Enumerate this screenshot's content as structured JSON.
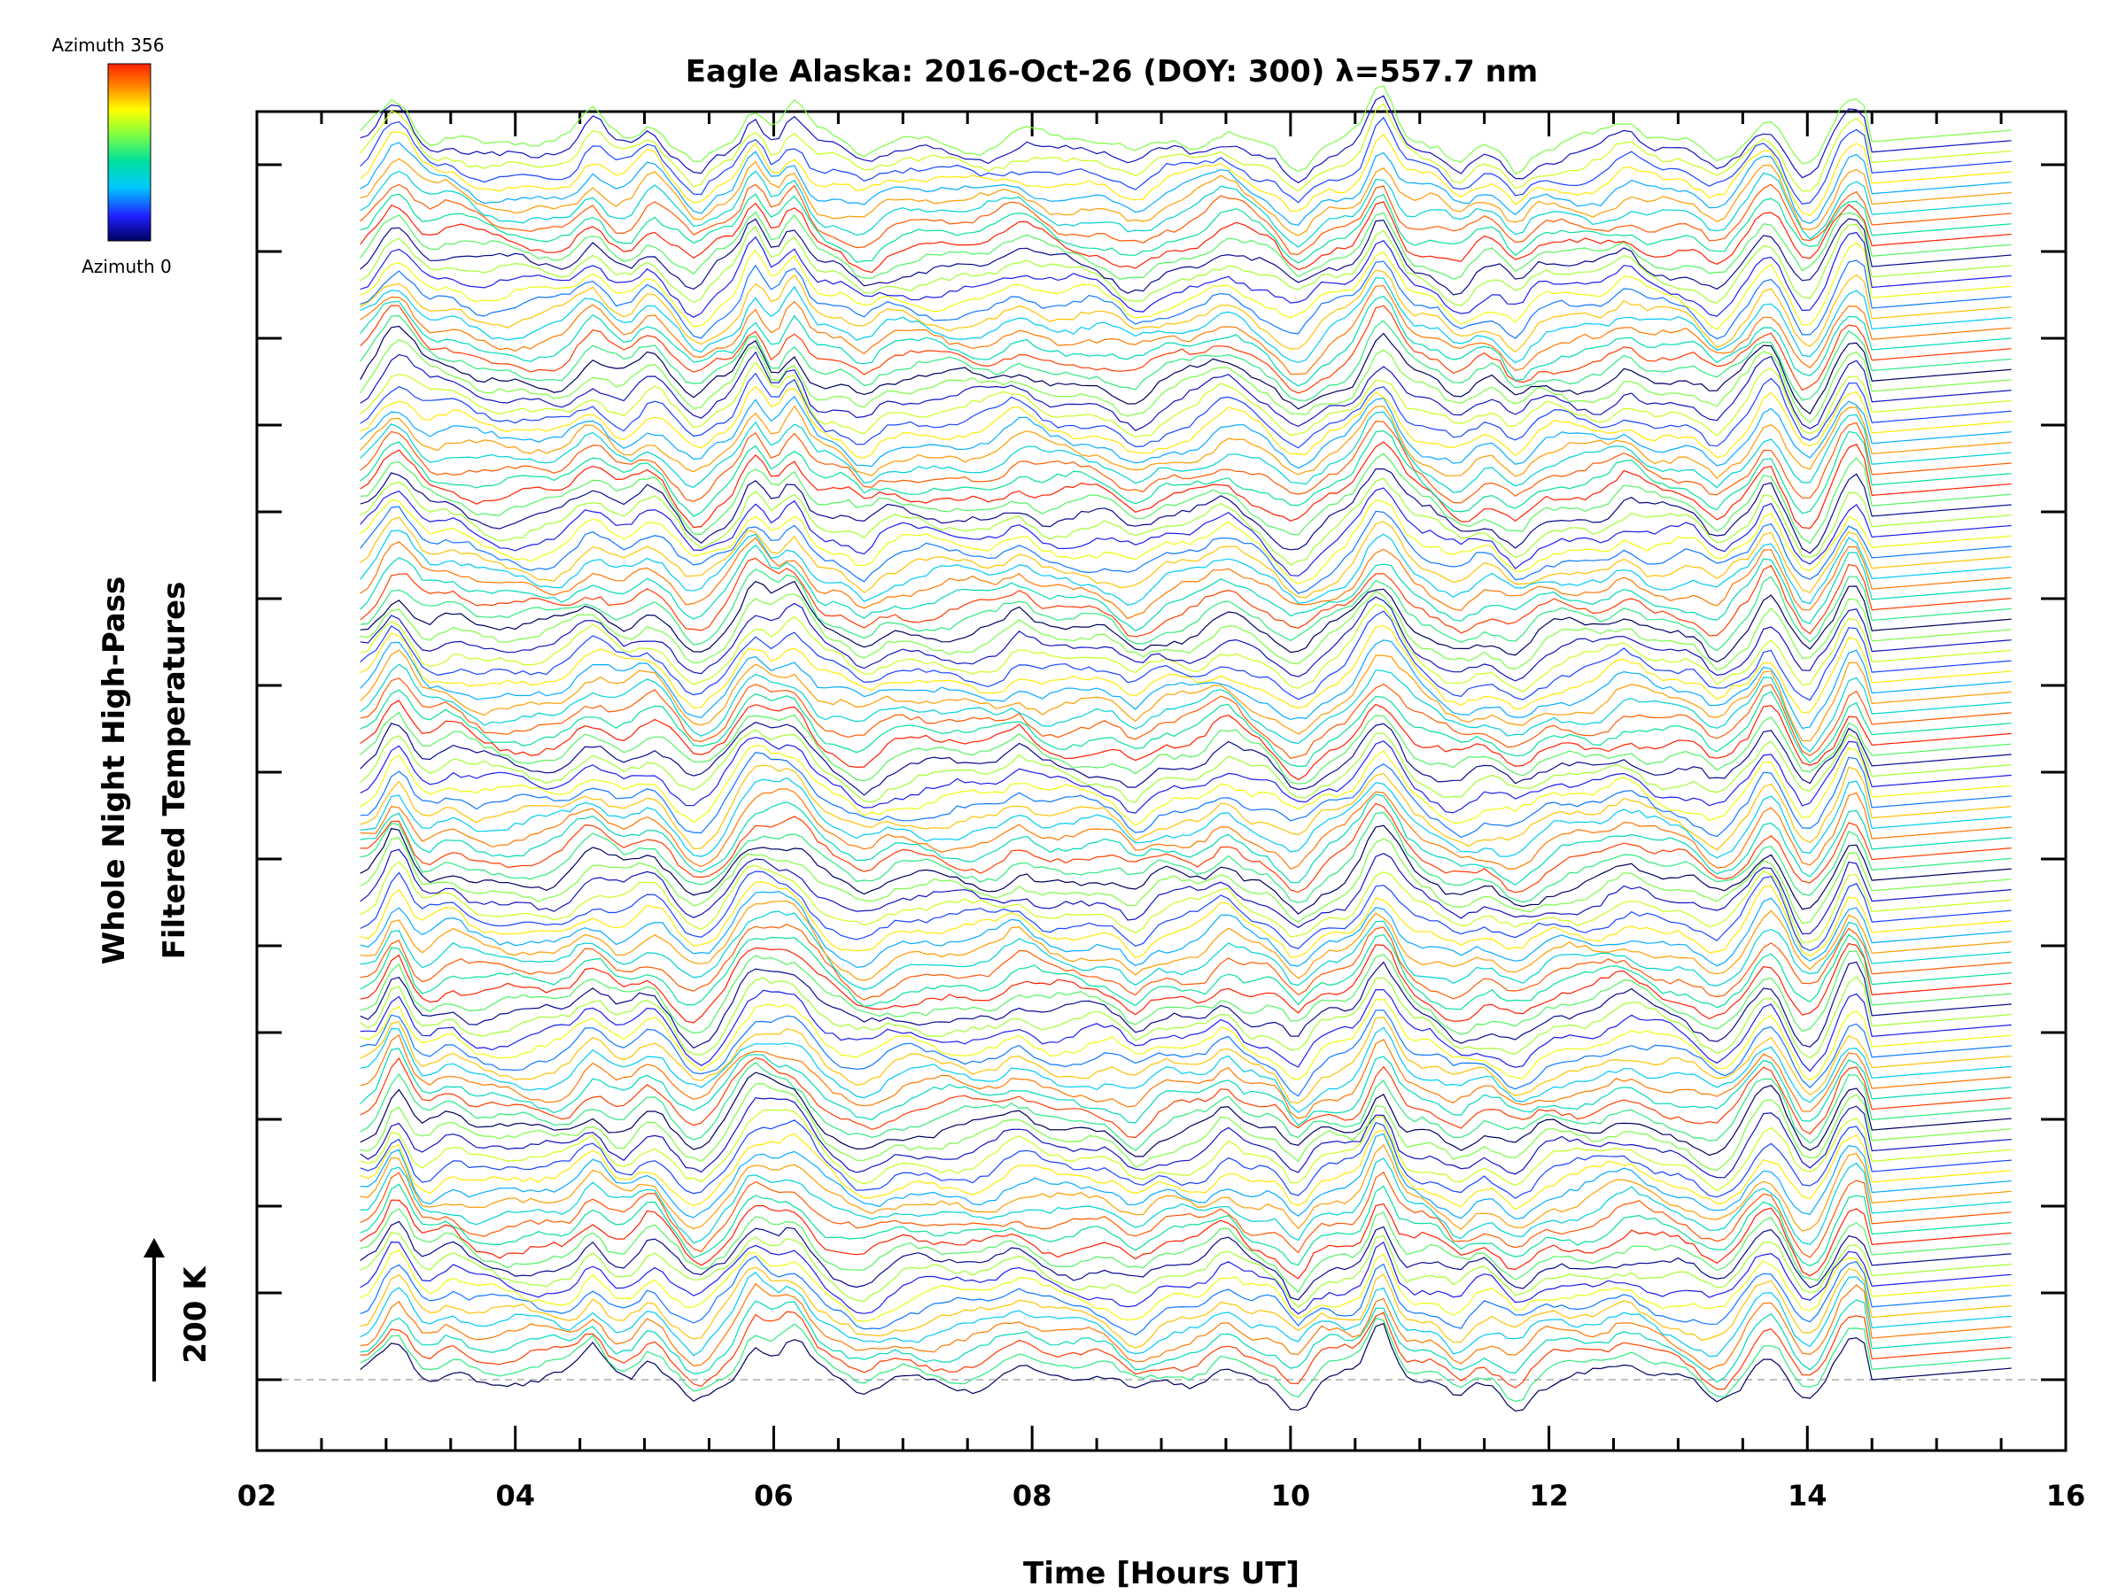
{
  "chart_data": {
    "type": "line",
    "title": "Eagle Alaska: 2016-Oct-26 (DOY: 300) λ=557.7 nm",
    "xlabel": "Time [Hours UT]",
    "ylabel_line1": "Whole Night High-Pass",
    "ylabel_line2": "Filtered Temperatures",
    "xlim": [
      2,
      16
    ],
    "x_tick_labels": [
      "02",
      "04",
      "06",
      "08",
      "10",
      "12",
      "14",
      "16"
    ],
    "x_range_data": [
      2.8,
      15.6
    ],
    "scale_bar_label": "200 K",
    "colorbar": {
      "label_top": "Azimuth 356",
      "label_bottom": "Azimuth 0",
      "colors": [
        "#000060",
        "#2020ff",
        "#00c8ff",
        "#00e0a0",
        "#80ff40",
        "#ffff00",
        "#ff8000",
        "#ff2000"
      ]
    },
    "series_count": 120,
    "azimuth_range": [
      0,
      356
    ],
    "features": [
      {
        "t": 3.08,
        "amp": 1.0
      },
      {
        "t": 3.5,
        "amp": 0.3
      },
      {
        "t": 4.6,
        "amp": 0.55
      },
      {
        "t": 5.05,
        "amp": 0.5
      },
      {
        "t": 5.4,
        "amp": -0.45
      },
      {
        "t": 5.85,
        "amp": 0.95
      },
      {
        "t": 6.15,
        "amp": 0.85
      },
      {
        "t": 6.7,
        "amp": -0.35
      },
      {
        "t": 7.9,
        "amp": 0.3
      },
      {
        "t": 8.8,
        "amp": -0.4
      },
      {
        "t": 9.5,
        "amp": 0.4
      },
      {
        "t": 10.05,
        "amp": -0.6
      },
      {
        "t": 10.7,
        "amp": 1.1
      },
      {
        "t": 11.3,
        "amp": -0.4
      },
      {
        "t": 11.75,
        "amp": -0.5
      },
      {
        "t": 12.6,
        "amp": 0.3
      },
      {
        "t": 13.3,
        "amp": -0.45
      },
      {
        "t": 13.7,
        "amp": 0.8
      },
      {
        "t": 14.0,
        "amp": -0.6
      },
      {
        "t": 14.35,
        "amp": 1.0
      }
    ]
  }
}
